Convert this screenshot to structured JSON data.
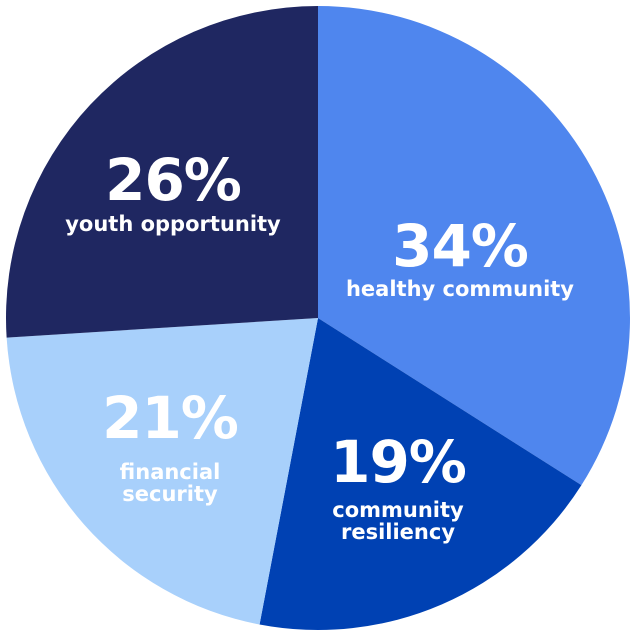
{
  "chart_data": {
    "type": "pie",
    "categories": [
      "healthy community",
      "community resiliency",
      "financial security",
      "youth opportunity"
    ],
    "values": [
      34,
      19,
      21,
      26
    ],
    "value_labels": [
      "34%",
      "19%",
      "21%",
      "26%"
    ],
    "colors": [
      "#4f86ee",
      "#0041b3",
      "#a8d0fb",
      "#1f2761"
    ]
  }
}
